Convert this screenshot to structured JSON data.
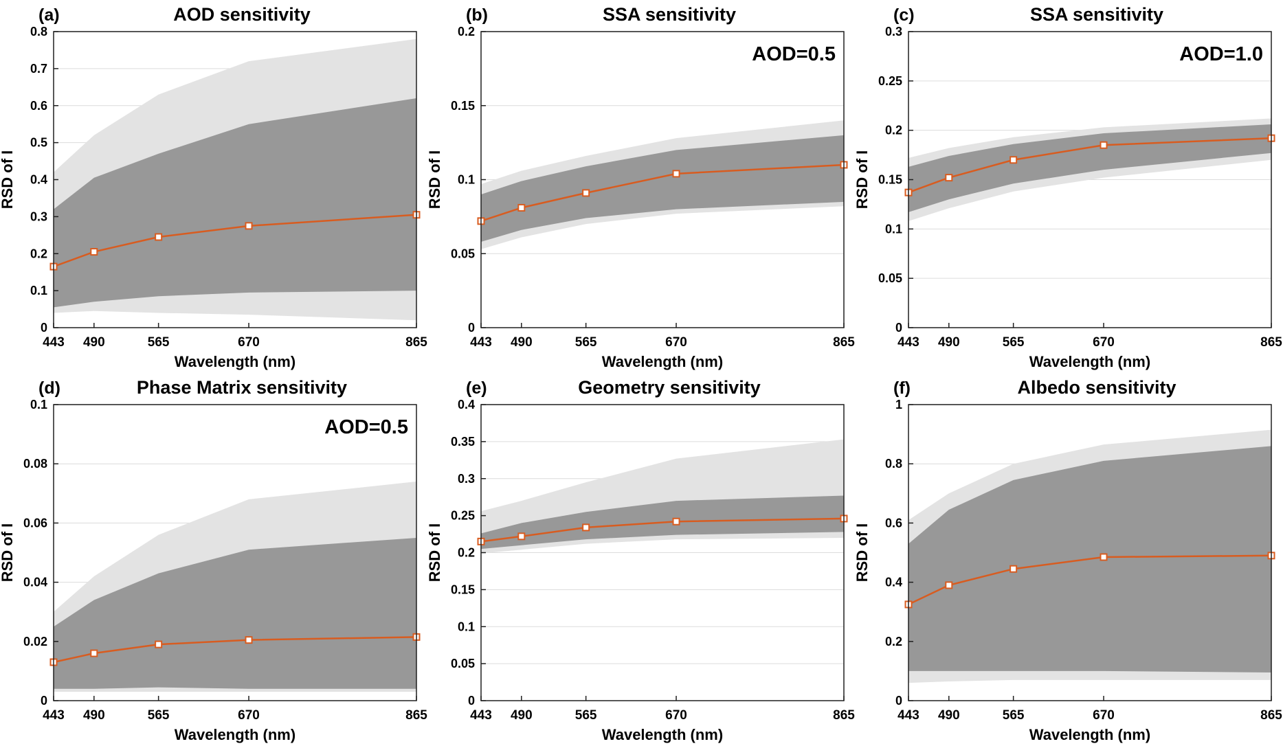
{
  "figure_title": "",
  "colors": {
    "line": "#d85c20",
    "marker_fill": "#ffffff",
    "dark_band": "#989898",
    "light_band": "#e3e3e3",
    "grid": "#dcdcdc",
    "axis": "#1f1f1f",
    "background": "#ffffff",
    "text": "#000000"
  },
  "chart_data": [
    {
      "type": "area",
      "panel_label": "(a)",
      "title": "AOD sensitivity",
      "annotation": "",
      "xlabel": "Wavelength (nm)",
      "ylabel": "RSD of I",
      "x": [
        443,
        490,
        565,
        670,
        865
      ],
      "xticks": [
        443,
        490,
        565,
        670,
        865
      ],
      "xlim": [
        443,
        865
      ],
      "ylim": [
        0,
        0.8
      ],
      "yticks": [
        0,
        0.1,
        0.2,
        0.3,
        0.4,
        0.5,
        0.6,
        0.7,
        0.8
      ],
      "grid": "horizontal",
      "series": {
        "mean": [
          0.165,
          0.205,
          0.245,
          0.275,
          0.305
        ],
        "inner_low": [
          0.055,
          0.07,
          0.085,
          0.095,
          0.1
        ],
        "inner_high": [
          0.32,
          0.405,
          0.47,
          0.55,
          0.62
        ],
        "outer_low": [
          0.04,
          0.045,
          0.04,
          0.035,
          0.02
        ],
        "outer_high": [
          0.42,
          0.52,
          0.63,
          0.72,
          0.78
        ]
      }
    },
    {
      "type": "area",
      "panel_label": "(b)",
      "title": "SSA sensitivity",
      "annotation": "AOD=0.5",
      "xlabel": "Wavelength (nm)",
      "ylabel": "RSD of I",
      "x": [
        443,
        490,
        565,
        670,
        865
      ],
      "xticks": [
        443,
        490,
        565,
        670,
        865
      ],
      "xlim": [
        443,
        865
      ],
      "ylim": [
        0,
        0.2
      ],
      "yticks": [
        0,
        0.05,
        0.1,
        0.15,
        0.2
      ],
      "grid": "horizontal",
      "series": {
        "mean": [
          0.072,
          0.081,
          0.091,
          0.104,
          0.11
        ],
        "inner_low": [
          0.058,
          0.066,
          0.074,
          0.08,
          0.085
        ],
        "inner_high": [
          0.09,
          0.099,
          0.109,
          0.12,
          0.13
        ],
        "outer_low": [
          0.053,
          0.061,
          0.07,
          0.077,
          0.082
        ],
        "outer_high": [
          0.097,
          0.106,
          0.116,
          0.128,
          0.14
        ]
      }
    },
    {
      "type": "area",
      "panel_label": "(c)",
      "title": "SSA sensitivity",
      "annotation": "AOD=1.0",
      "xlabel": "Wavelength (nm)",
      "ylabel": "RSD of I",
      "x": [
        443,
        490,
        565,
        670,
        865
      ],
      "xticks": [
        443,
        490,
        565,
        670,
        865
      ],
      "xlim": [
        443,
        865
      ],
      "ylim": [
        0,
        0.3
      ],
      "yticks": [
        0,
        0.05,
        0.1,
        0.15,
        0.2,
        0.25,
        0.3
      ],
      "grid": "horizontal",
      "series": {
        "mean": [
          0.137,
          0.152,
          0.17,
          0.185,
          0.192
        ],
        "inner_low": [
          0.117,
          0.13,
          0.146,
          0.16,
          0.177
        ],
        "inner_high": [
          0.163,
          0.174,
          0.186,
          0.197,
          0.206
        ],
        "outer_low": [
          0.108,
          0.121,
          0.138,
          0.152,
          0.17
        ],
        "outer_high": [
          0.172,
          0.182,
          0.193,
          0.203,
          0.212
        ]
      }
    },
    {
      "type": "area",
      "panel_label": "(d)",
      "title": "Phase Matrix sensitivity",
      "annotation": "AOD=0.5",
      "xlabel": "Wavelength (nm)",
      "ylabel": "RSD of I",
      "x": [
        443,
        490,
        565,
        670,
        865
      ],
      "xticks": [
        443,
        490,
        565,
        670,
        865
      ],
      "xlim": [
        443,
        865
      ],
      "ylim": [
        0,
        0.1
      ],
      "yticks": [
        0,
        0.02,
        0.04,
        0.06,
        0.08,
        0.1
      ],
      "grid": "horizontal",
      "series": {
        "mean": [
          0.013,
          0.016,
          0.019,
          0.0205,
          0.0215
        ],
        "inner_low": [
          0.004,
          0.004,
          0.0045,
          0.004,
          0.004
        ],
        "inner_high": [
          0.025,
          0.034,
          0.043,
          0.051,
          0.055
        ],
        "outer_low": [
          0.003,
          0.003,
          0.003,
          0.003,
          0.003
        ],
        "outer_high": [
          0.03,
          0.042,
          0.056,
          0.068,
          0.074
        ]
      }
    },
    {
      "type": "area",
      "panel_label": "(e)",
      "title": "Geometry sensitivity",
      "annotation": "",
      "xlabel": "Wavelength (nm)",
      "ylabel": "RSD of I",
      "x": [
        443,
        490,
        565,
        670,
        865
      ],
      "xticks": [
        443,
        490,
        565,
        670,
        865
      ],
      "xlim": [
        443,
        865
      ],
      "ylim": [
        0,
        0.4
      ],
      "yticks": [
        0,
        0.05,
        0.1,
        0.15,
        0.2,
        0.25,
        0.3,
        0.35,
        0.4
      ],
      "grid": "horizontal",
      "series": {
        "mean": [
          0.215,
          0.222,
          0.234,
          0.242,
          0.246
        ],
        "inner_low": [
          0.205,
          0.21,
          0.218,
          0.224,
          0.228
        ],
        "inner_high": [
          0.226,
          0.24,
          0.255,
          0.27,
          0.277
        ],
        "outer_low": [
          0.199,
          0.204,
          0.212,
          0.218,
          0.22
        ],
        "outer_high": [
          0.256,
          0.27,
          0.295,
          0.327,
          0.353
        ]
      }
    },
    {
      "type": "area",
      "panel_label": "(f)",
      "title": "Albedo sensitivity",
      "annotation": "",
      "xlabel": "Wavelength (nm)",
      "ylabel": "RSD of I",
      "x": [
        443,
        490,
        565,
        670,
        865
      ],
      "xticks": [
        443,
        490,
        565,
        670,
        865
      ],
      "xlim": [
        443,
        865
      ],
      "ylim": [
        0,
        1
      ],
      "yticks": [
        0,
        0.2,
        0.4,
        0.6,
        0.8,
        1
      ],
      "grid": "horizontal",
      "series": {
        "mean": [
          0.325,
          0.39,
          0.445,
          0.485,
          0.49
        ],
        "inner_low": [
          0.1,
          0.1,
          0.1,
          0.1,
          0.095
        ],
        "inner_high": [
          0.53,
          0.645,
          0.745,
          0.81,
          0.86
        ],
        "outer_low": [
          0.06,
          0.065,
          0.07,
          0.07,
          0.07
        ],
        "outer_high": [
          0.61,
          0.7,
          0.8,
          0.865,
          0.915
        ]
      }
    }
  ]
}
